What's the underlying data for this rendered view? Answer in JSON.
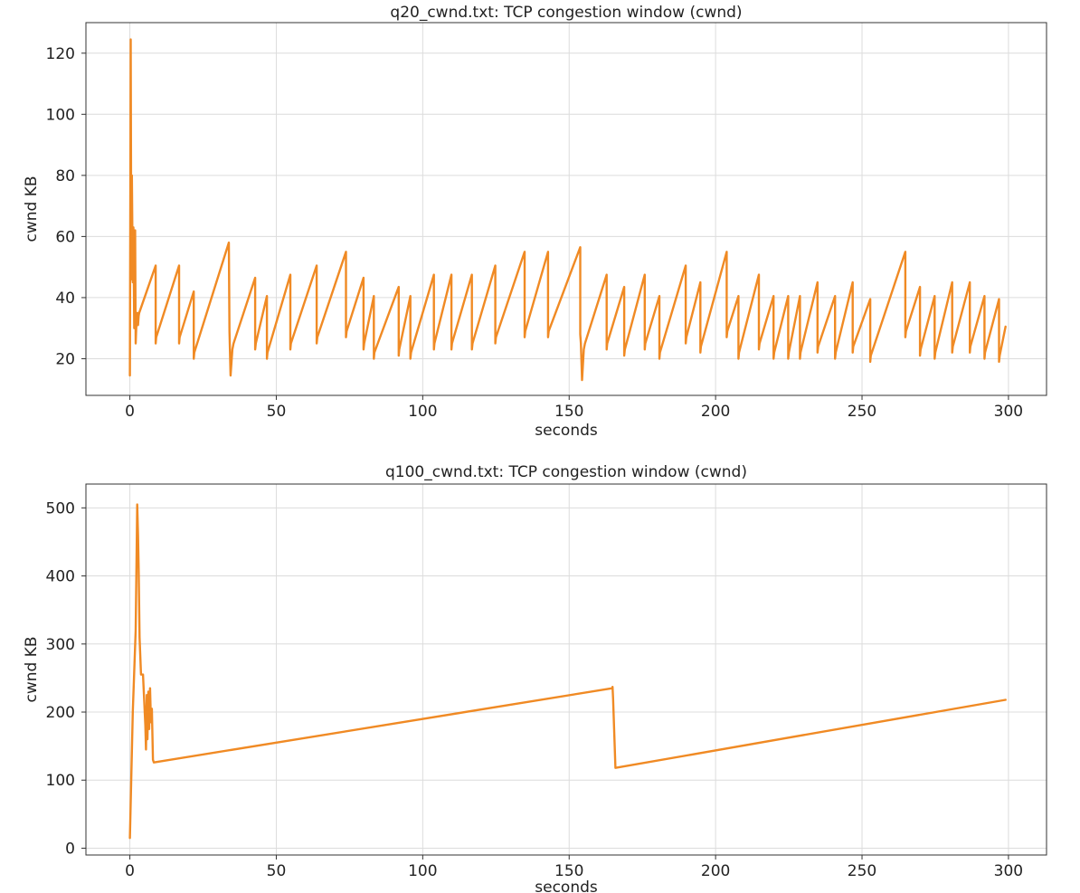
{
  "chart_data": [
    {
      "type": "line",
      "title": "q20_cwnd.txt: TCP congestion window (cwnd)",
      "xlabel": "seconds",
      "ylabel": "cwnd KB",
      "xlim": [
        -15,
        313
      ],
      "ylim": [
        8,
        130
      ],
      "xticks": [
        0,
        50,
        100,
        150,
        200,
        250,
        300
      ],
      "yticks": [
        20,
        40,
        60,
        80,
        100,
        120
      ],
      "grid": true,
      "legend": "none",
      "color": "#f08a24",
      "series": [
        {
          "x": [
            0,
            0.3,
            0.5,
            0.7,
            1.0,
            1.2,
            1.5,
            1.8,
            2.0,
            2.3,
            2.6,
            2.8,
            3.0,
            3.2,
            8.8,
            8.8,
            9.0,
            16.8,
            16.8,
            17.0,
            21.8,
            21.8,
            22.0,
            33.8,
            34.0,
            34.4,
            35.0,
            35.4,
            42.8,
            42.8,
            43.0,
            46.8,
            46.8,
            47.0,
            54.8,
            54.8,
            55.0,
            63.8,
            63.8,
            64.0,
            73.8,
            73.8,
            74.0,
            79.8,
            79.8,
            80.0,
            83.3,
            83.3,
            83.5,
            91.8,
            91.8,
            92.0,
            95.8,
            95.8,
            96.0,
            103.8,
            103.8,
            104.0,
            109.8,
            109.8,
            110.0,
            116.8,
            116.8,
            117.0,
            124.8,
            124.8,
            125.0,
            134.8,
            134.8,
            135.0,
            142.8,
            142.8,
            143.0,
            153.8,
            153.8,
            154.0,
            154.4,
            155.0,
            155.4,
            162.8,
            162.8,
            163.0,
            168.8,
            168.8,
            169.0,
            175.8,
            175.8,
            176.0,
            180.8,
            180.8,
            181.0,
            189.8,
            189.8,
            190.0,
            194.8,
            194.8,
            195.0,
            203.8,
            203.8,
            204.0,
            207.8,
            207.8,
            208.0,
            214.8,
            214.8,
            215.0,
            219.8,
            219.8,
            220.0,
            224.8,
            224.8,
            225.0,
            228.8,
            228.8,
            229.0,
            234.8,
            234.8,
            235.0,
            240.8,
            240.8,
            241.0,
            246.8,
            246.8,
            247.0,
            252.8,
            252.8,
            253.0,
            264.8,
            264.8,
            265.0,
            269.8,
            269.8,
            270.0,
            274.8,
            274.8,
            275.0,
            280.8,
            280.8,
            281.0,
            286.8,
            286.8,
            287.0,
            291.8,
            291.8,
            292.0,
            296.8,
            296.8,
            297.0,
            299.0
          ],
          "y": [
            14.5,
            124.5,
            46,
            80,
            45,
            63,
            30,
            62,
            25,
            33,
            35,
            31,
            34,
            35,
            50.5,
            25,
            27,
            50.5,
            25,
            27,
            42,
            20,
            22,
            58,
            29,
            14.5,
            23,
            25,
            46.5,
            23,
            25,
            40.5,
            20,
            22,
            47.5,
            23,
            25,
            50.5,
            25,
            27,
            55,
            27,
            29,
            46.5,
            23,
            25,
            40.5,
            20,
            22,
            43.5,
            21,
            23,
            40.5,
            20,
            22,
            47.5,
            23,
            25,
            47.5,
            23,
            25,
            47.5,
            23,
            25,
            50.5,
            25,
            27,
            55,
            27,
            29,
            55,
            27,
            29,
            56.5,
            28,
            25,
            13,
            23,
            25,
            47.5,
            23,
            25,
            43.5,
            21,
            23,
            47.5,
            23,
            25,
            40.5,
            20,
            22,
            50.5,
            25,
            27,
            45,
            22,
            24,
            55,
            27,
            29,
            40.5,
            20,
            22,
            47.5,
            23,
            25,
            40.5,
            20,
            22,
            40.5,
            20,
            22,
            40.5,
            20,
            22,
            45,
            22,
            24,
            40.5,
            20,
            22,
            45,
            22,
            24,
            39.5,
            19,
            21,
            55,
            27,
            29,
            43.5,
            21,
            23,
            40.5,
            20,
            22,
            45,
            22,
            24,
            45,
            22,
            24,
            40.5,
            20,
            22,
            39.5,
            19,
            21,
            30.5
          ]
        }
      ]
    },
    {
      "type": "line",
      "title": "q100_cwnd.txt: TCP congestion window (cwnd)",
      "xlabel": "seconds",
      "ylabel": "cwnd KB",
      "xlim": [
        -15,
        313
      ],
      "ylim": [
        -10,
        535
      ],
      "xticks": [
        0,
        50,
        100,
        150,
        200,
        250,
        300
      ],
      "yticks": [
        0,
        100,
        200,
        300,
        400,
        500
      ],
      "grid": true,
      "legend": "none",
      "color": "#f08a24",
      "series": [
        {
          "x": [
            0,
            1.0,
            2.0,
            2.5,
            2.8,
            3.0,
            3.3,
            3.8,
            4.5,
            5.3,
            5.5,
            5.8,
            6.0,
            6.3,
            6.6,
            6.9,
            7.2,
            7.5,
            7.9,
            8.2,
            164.7,
            164.8,
            165.0,
            165.8,
            299.0
          ],
          "y": [
            15,
            200,
            320,
            505,
            460,
            410,
            310,
            255,
            255,
            180,
            145,
            225,
            160,
            230,
            175,
            235,
            185,
            205,
            130,
            126,
            235,
            237,
            220,
            118,
            218
          ]
        }
      ]
    }
  ]
}
